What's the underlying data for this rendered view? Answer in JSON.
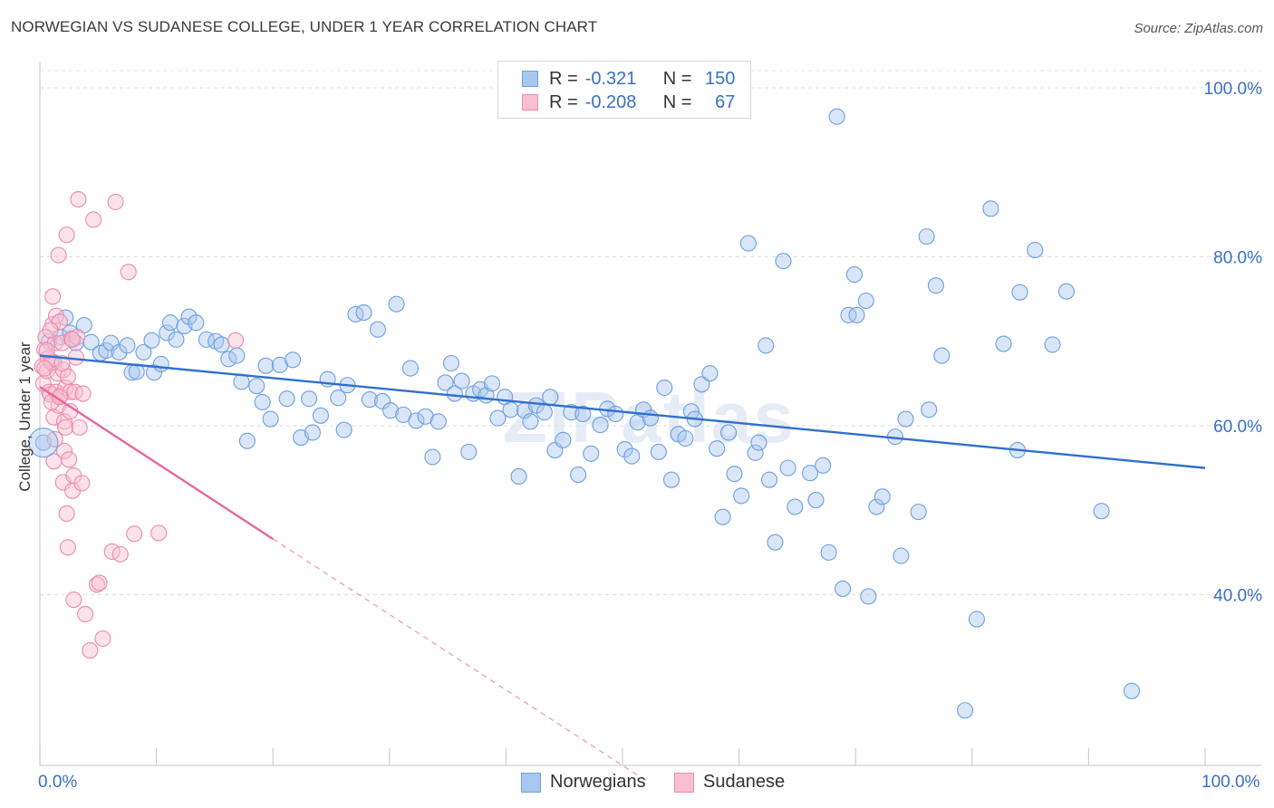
{
  "title": "NORWEGIAN VS SUDANESE COLLEGE, UNDER 1 YEAR CORRELATION CHART",
  "source": "Source: ZipAtlas.com",
  "watermark": "ZIPatlas",
  "legend": {
    "rows": [
      {
        "r_label": "R =",
        "r_value": "-0.321",
        "n_label": "N =",
        "n_value": "150",
        "fill": "#a9c8f0",
        "stroke": "#6f9fe0"
      },
      {
        "r_label": "R =",
        "r_value": "-0.208",
        "n_label": "N =",
        "n_value": "67",
        "fill": "#f8bfd2",
        "stroke": "#ec8bab"
      }
    ]
  },
  "bottom_legend": [
    {
      "label": "Norwegians",
      "fill": "#a9c8f0",
      "stroke": "#6f9fe0"
    },
    {
      "label": "Sudanese",
      "fill": "#f8bfd2",
      "stroke": "#ec8bab"
    }
  ],
  "chart_data": {
    "type": "scatter",
    "title": "NORWEGIAN VS SUDANESE COLLEGE, UNDER 1 YEAR CORRELATION CHART",
    "xlabel": "",
    "ylabel": "College, Under 1 year",
    "xlim": [
      0,
      100
    ],
    "ylim": [
      20,
      100
    ],
    "x_tick_labels": [
      "0.0%",
      "100.0%"
    ],
    "y_ticks": [
      40,
      60,
      80,
      100
    ],
    "y_tick_labels": [
      "40.0%",
      "60.0%",
      "80.0%",
      "100.0%"
    ],
    "grid": true,
    "series": [
      {
        "name": "Norwegians",
        "color": "#a9c8f0",
        "edge": "#6f9fe0",
        "line_color": "#2f6fce",
        "trend": {
          "x0": 0,
          "y0": 68.3,
          "x1": 100,
          "y1": 55.0
        },
        "points": [
          [
            0.3,
            58
          ],
          [
            0.8,
            70
          ],
          [
            1.2,
            67.5
          ],
          [
            1.8,
            70.5
          ],
          [
            2.2,
            72.8
          ],
          [
            2.6,
            71
          ],
          [
            3.1,
            69.8
          ],
          [
            3.8,
            71.9
          ],
          [
            4.4,
            69.9
          ],
          [
            5.2,
            68.6
          ],
          [
            5.7,
            68.9
          ],
          [
            6.1,
            69.8
          ],
          [
            6.8,
            68.7
          ],
          [
            7.5,
            69.5
          ],
          [
            7.9,
            66.3
          ],
          [
            8.3,
            66.4
          ],
          [
            8.9,
            68.7
          ],
          [
            9.6,
            70.1
          ],
          [
            9.8,
            66.3
          ],
          [
            10.4,
            67.3
          ],
          [
            10.9,
            71
          ],
          [
            11.2,
            72.2
          ],
          [
            11.7,
            70.2
          ],
          [
            12.4,
            71.8
          ],
          [
            12.8,
            72.9
          ],
          [
            13.4,
            72.2
          ],
          [
            14.3,
            70.2
          ],
          [
            15.1,
            70
          ],
          [
            15.6,
            69.6
          ],
          [
            16.2,
            67.9
          ],
          [
            16.9,
            68.3
          ],
          [
            17.3,
            65.2
          ],
          [
            17.8,
            58.2
          ],
          [
            18.6,
            64.7
          ],
          [
            19.1,
            62.8
          ],
          [
            19.4,
            67.1
          ],
          [
            19.8,
            60.8
          ],
          [
            20.6,
            67.2
          ],
          [
            21.2,
            63.2
          ],
          [
            21.7,
            67.8
          ],
          [
            22.4,
            58.6
          ],
          [
            23.1,
            63.2
          ],
          [
            23.4,
            59.2
          ],
          [
            24.1,
            61.2
          ],
          [
            24.7,
            65.5
          ],
          [
            25.6,
            63.3
          ],
          [
            26.1,
            59.5
          ],
          [
            26.4,
            64.8
          ],
          [
            27.1,
            73.2
          ],
          [
            27.8,
            73.4
          ],
          [
            28.3,
            63.1
          ],
          [
            29.0,
            71.4
          ],
          [
            29.4,
            62.9
          ],
          [
            30.1,
            61.8
          ],
          [
            30.6,
            74.4
          ],
          [
            31.2,
            61.3
          ],
          [
            31.8,
            66.8
          ],
          [
            32.3,
            60.6
          ],
          [
            33.1,
            61.1
          ],
          [
            33.7,
            56.3
          ],
          [
            34.2,
            60.5
          ],
          [
            34.8,
            65.1
          ],
          [
            35.3,
            67.4
          ],
          [
            35.6,
            63.8
          ],
          [
            36.2,
            65.3
          ],
          [
            36.8,
            56.9
          ],
          [
            37.2,
            63.8
          ],
          [
            37.8,
            64.3
          ],
          [
            38.3,
            63.6
          ],
          [
            38.8,
            65
          ],
          [
            39.3,
            60.9
          ],
          [
            39.9,
            63.4
          ],
          [
            40.4,
            61.9
          ],
          [
            41.1,
            54
          ],
          [
            41.6,
            61.8
          ],
          [
            42.1,
            60.5
          ],
          [
            42.6,
            62.4
          ],
          [
            43.3,
            61.6
          ],
          [
            43.8,
            63.4
          ],
          [
            44.2,
            57.1
          ],
          [
            44.9,
            58.3
          ],
          [
            45.6,
            61.6
          ],
          [
            46.2,
            54.2
          ],
          [
            46.6,
            61.4
          ],
          [
            47.3,
            56.7
          ],
          [
            48.1,
            60.1
          ],
          [
            48.7,
            62
          ],
          [
            49.4,
            61.4
          ],
          [
            50.2,
            57.2
          ],
          [
            50.8,
            56.4
          ],
          [
            51.3,
            60.4
          ],
          [
            51.8,
            61.9
          ],
          [
            52.4,
            60.9
          ],
          [
            53.1,
            56.9
          ],
          [
            53.6,
            64.5
          ],
          [
            54.2,
            53.6
          ],
          [
            54.8,
            59
          ],
          [
            55.4,
            58.5
          ],
          [
            55.9,
            61.7
          ],
          [
            56.2,
            60.8
          ],
          [
            56.8,
            64.9
          ],
          [
            57.5,
            66.2
          ],
          [
            58.1,
            57.3
          ],
          [
            58.6,
            49.2
          ],
          [
            59.1,
            59.2
          ],
          [
            59.6,
            54.3
          ],
          [
            60.2,
            51.7
          ],
          [
            60.8,
            81.6
          ],
          [
            61.4,
            56.8
          ],
          [
            61.7,
            58
          ],
          [
            62.3,
            69.5
          ],
          [
            62.6,
            53.6
          ],
          [
            63.1,
            46.2
          ],
          [
            63.8,
            79.5
          ],
          [
            64.2,
            55
          ],
          [
            64.8,
            50.4
          ],
          [
            66.1,
            54.4
          ],
          [
            66.6,
            51.2
          ],
          [
            67.2,
            55.3
          ],
          [
            67.7,
            45.0
          ],
          [
            68.4,
            96.6
          ],
          [
            68.9,
            40.7
          ],
          [
            69.4,
            73.1
          ],
          [
            69.9,
            77.9
          ],
          [
            70.1,
            73.1
          ],
          [
            70.9,
            74.8
          ],
          [
            71.1,
            39.8
          ],
          [
            71.8,
            50.4
          ],
          [
            72.3,
            51.6
          ],
          [
            73.4,
            58.7
          ],
          [
            73.9,
            44.6
          ],
          [
            74.3,
            60.8
          ],
          [
            75.4,
            49.8
          ],
          [
            76.1,
            82.4
          ],
          [
            76.3,
            61.9
          ],
          [
            76.9,
            76.6
          ],
          [
            77.4,
            68.3
          ],
          [
            79.4,
            26.3
          ],
          [
            80.4,
            37.1
          ],
          [
            81.6,
            85.7
          ],
          [
            82.7,
            69.7
          ],
          [
            84.1,
            75.8
          ],
          [
            83.9,
            57.1
          ],
          [
            85.4,
            80.8
          ],
          [
            86.9,
            69.6
          ],
          [
            88.1,
            75.9
          ],
          [
            91.1,
            49.9
          ],
          [
            93.7,
            28.6
          ]
        ]
      },
      {
        "name": "Sudanese",
        "color": "#f8bfd2",
        "edge": "#ec8bab",
        "line_color": "#e6689a",
        "trend": {
          "x0": 0,
          "y0": 64.6,
          "x1": 20,
          "y1": 46.6
        },
        "trend_dashed_to": {
          "x": 52,
          "y": 18
        },
        "points": [
          [
            0.2,
            67
          ],
          [
            0.3,
            65
          ],
          [
            0.4,
            69
          ],
          [
            0.5,
            70.5
          ],
          [
            0.6,
            66.5
          ],
          [
            0.7,
            68
          ],
          [
            0.8,
            64
          ],
          [
            0.9,
            63.7
          ],
          [
            1.0,
            67.5
          ],
          [
            1.1,
            72
          ],
          [
            1.1,
            75.3
          ],
          [
            1.2,
            61
          ],
          [
            1.2,
            55.8
          ],
          [
            1.3,
            69.8
          ],
          [
            1.4,
            73
          ],
          [
            1.4,
            64
          ],
          [
            1.5,
            66.2
          ],
          [
            1.6,
            62.4
          ],
          [
            1.7,
            72.3
          ],
          [
            1.8,
            63.6
          ],
          [
            1.9,
            69.8
          ],
          [
            2.0,
            66.6
          ],
          [
            2.0,
            53.3
          ],
          [
            2.1,
            57
          ],
          [
            2.1,
            60.5
          ],
          [
            2.2,
            64.5
          ],
          [
            2.2,
            59.8
          ],
          [
            2.3,
            49.6
          ],
          [
            2.3,
            82.6
          ],
          [
            2.4,
            45.6
          ],
          [
            2.5,
            56
          ],
          [
            2.6,
            64
          ],
          [
            2.7,
            70.3
          ],
          [
            2.8,
            52.3
          ],
          [
            2.9,
            54.1
          ],
          [
            2.9,
            39.4
          ],
          [
            3.0,
            64
          ],
          [
            3.1,
            68.1
          ],
          [
            3.2,
            70.5
          ],
          [
            3.3,
            86.8
          ],
          [
            3.4,
            59.8
          ],
          [
            3.6,
            53.2
          ],
          [
            3.7,
            63.8
          ],
          [
            3.9,
            37.7
          ],
          [
            4.3,
            33.4
          ],
          [
            4.6,
            84.4
          ],
          [
            4.9,
            41.2
          ],
          [
            5.1,
            41.4
          ],
          [
            5.4,
            34.8
          ],
          [
            6.2,
            45.1
          ],
          [
            6.5,
            86.5
          ],
          [
            6.9,
            44.8
          ],
          [
            7.6,
            78.2
          ],
          [
            8.1,
            47.2
          ],
          [
            10.2,
            47.3
          ],
          [
            16.8,
            70.1
          ],
          [
            1.6,
            80.2
          ],
          [
            2.4,
            65.8
          ],
          [
            0.9,
            71.3
          ],
          [
            1.3,
            58.4
          ],
          [
            1.9,
            67.4
          ],
          [
            0.6,
            68.9
          ],
          [
            2.6,
            61.7
          ],
          [
            1.0,
            62.8
          ],
          [
            1.7,
            63.4
          ],
          [
            2.8,
            70.2
          ],
          [
            0.4,
            66.8
          ]
        ]
      }
    ]
  }
}
